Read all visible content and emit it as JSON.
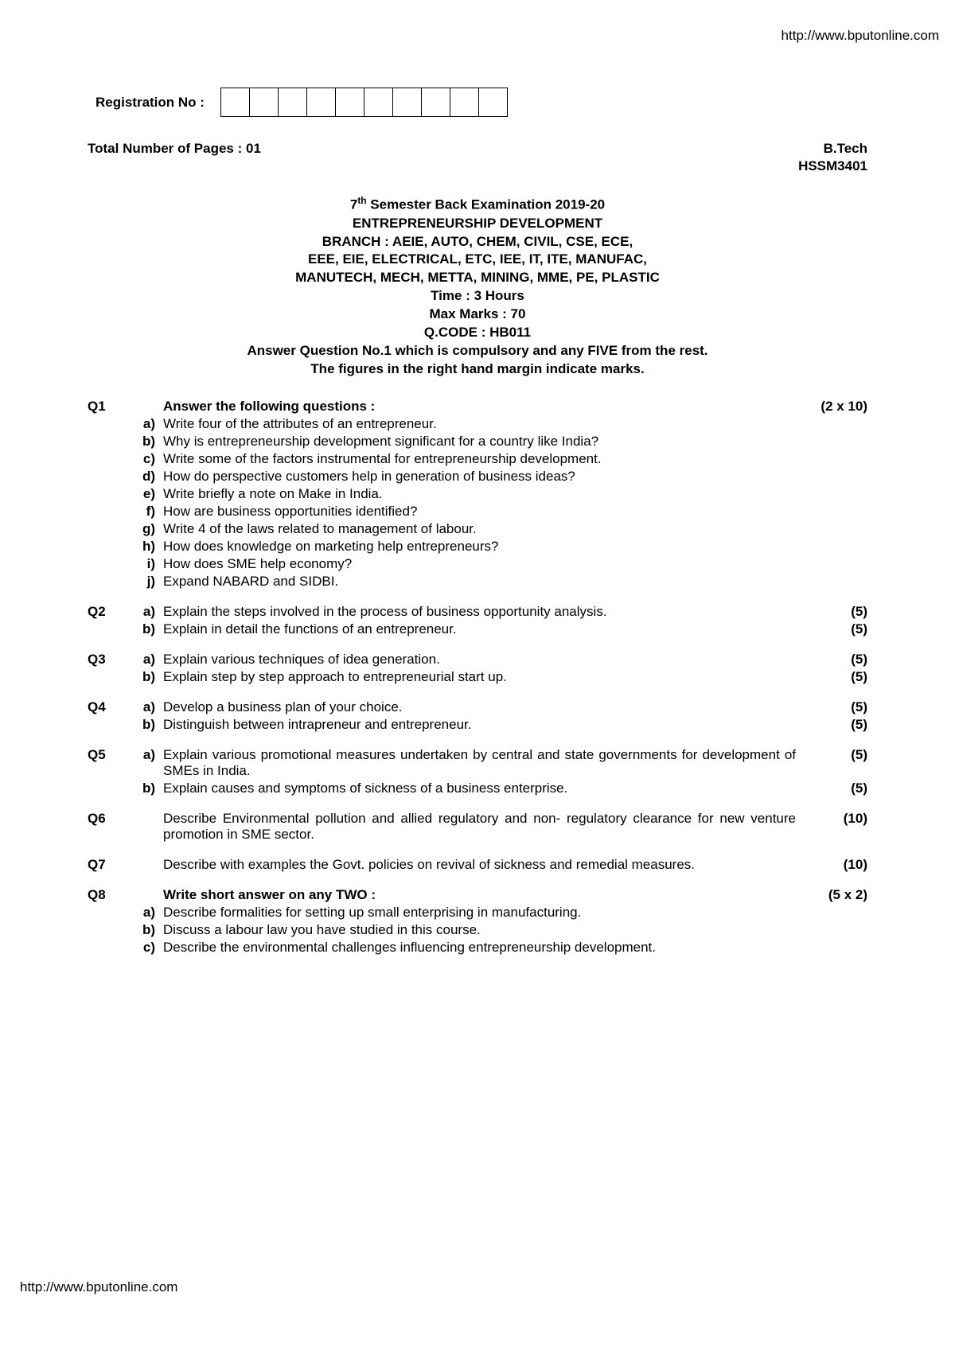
{
  "url_top": "http://www.bputonline.com",
  "url_bottom": "http://www.bputonline.com",
  "reg_label": "Registration No :",
  "reg_box_count": 10,
  "total_pages_label": "Total Number of Pages : 01",
  "degree": "B.Tech",
  "course_code": "HSSM3401",
  "header": {
    "line1_prefix": "7",
    "line1_sup": "th",
    "line1_rest": " Semester Back Examination 2019-20",
    "line2": "ENTREPRENEURSHIP DEVELOPMENT",
    "line3": "BRANCH : AEIE, AUTO, CHEM, CIVIL, CSE, ECE,",
    "line4": "EEE, EIE, ELECTRICAL, ETC, IEE, IT, ITE, MANUFAC,",
    "line5": "MANUTECH, MECH, METTA, MINING, MME, PE, PLASTIC",
    "line6": "Time : 3 Hours",
    "line7": "Max Marks : 70",
    "line8": "Q.CODE : HB011",
    "line9": "Answer Question No.1 which is compulsory and any FIVE from the rest.",
    "line10": "The figures in the right hand margin indicate marks."
  },
  "q1": {
    "num": "Q1",
    "title": "Answer the following questions :",
    "marks": "(2 x 10)",
    "items": [
      {
        "l": "a)",
        "t": "Write four of the attributes of an entrepreneur."
      },
      {
        "l": "b)",
        "t": "Why is entrepreneurship development significant for a country like India?"
      },
      {
        "l": "c)",
        "t": "Write some of the factors instrumental for entrepreneurship development."
      },
      {
        "l": "d)",
        "t": "How do perspective customers help in generation of business ideas?"
      },
      {
        "l": "e)",
        "t": "Write briefly a note on Make in India."
      },
      {
        "l": "f)",
        "t": "How are business opportunities identified?"
      },
      {
        "l": "g)",
        "t": "Write 4 of the laws related to management of labour."
      },
      {
        "l": "h)",
        "t": "How does knowledge on marketing help entrepreneurs?"
      },
      {
        "l": "i)",
        "t": "How does SME help economy?"
      },
      {
        "l": "j)",
        "t": "Expand NABARD and SIDBI."
      }
    ]
  },
  "q2": {
    "num": "Q2",
    "items": [
      {
        "l": "a)",
        "t": "Explain the steps involved in the process of business opportunity analysis.",
        "m": "(5)"
      },
      {
        "l": "b)",
        "t": "Explain in detail the functions of an entrepreneur.",
        "m": "(5)"
      }
    ]
  },
  "q3": {
    "num": "Q3",
    "items": [
      {
        "l": "a)",
        "t": "Explain various techniques of idea generation.",
        "m": "(5)"
      },
      {
        "l": "b)",
        "t": "Explain step by step approach to entrepreneurial start up.",
        "m": "(5)"
      }
    ]
  },
  "q4": {
    "num": "Q4",
    "items": [
      {
        "l": "a)",
        "t": "Develop a business plan of your choice.",
        "m": "(5)"
      },
      {
        "l": "b)",
        "t": "Distinguish between intrapreneur and entrepreneur.",
        "m": "(5)"
      }
    ]
  },
  "q5": {
    "num": "Q5",
    "items": [
      {
        "l": "a)",
        "t": "Explain various promotional measures undertaken by central and state governments for development of SMEs in India.",
        "m": "(5)",
        "justify": true
      },
      {
        "l": "b)",
        "t": "Explain causes and symptoms of sickness of a business enterprise.",
        "m": "(5)"
      }
    ]
  },
  "q6": {
    "num": "Q6",
    "text": "Describe Environmental pollution and allied regulatory and non- regulatory clearance for new venture promotion in SME sector.",
    "marks": "(10)"
  },
  "q7": {
    "num": "Q7",
    "text": "Describe with examples the Govt. policies on revival of sickness and remedial measures.",
    "marks": "(10)"
  },
  "q8": {
    "num": "Q8",
    "title": "Write short answer on any TWO :",
    "marks": "(5 x 2)",
    "items": [
      {
        "l": "a)",
        "t": "Describe formalities for setting up small enterprising in manufacturing."
      },
      {
        "l": "b)",
        "t": "Discuss a labour law you have studied in this course."
      },
      {
        "l": "c)",
        "t": "Describe the environmental challenges influencing entrepreneurship development.",
        "justify": true
      }
    ]
  }
}
